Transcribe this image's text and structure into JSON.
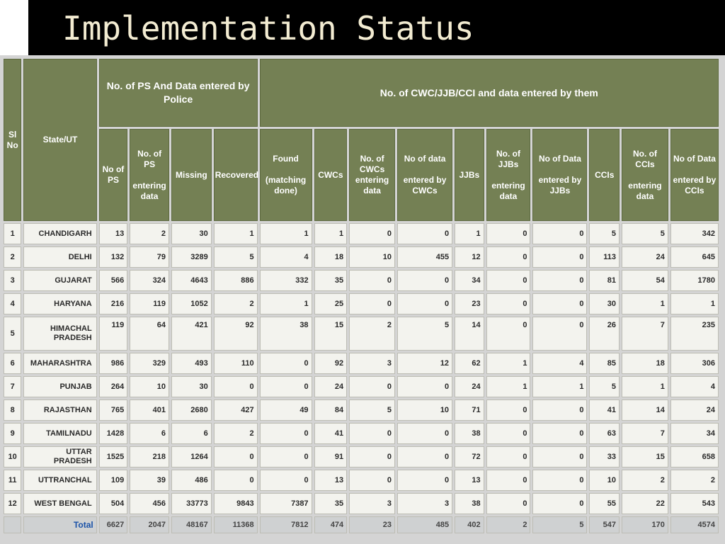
{
  "slide": {
    "title": "Implementation Status"
  },
  "table": {
    "headers": {
      "sl_no": "Sl No",
      "state": "State/UT",
      "group_police": "No. of PS And Data entered by Police",
      "group_cwc": "No. of CWC/JJB/CCI  and data entered  by them",
      "no_of_ps": "No of PS",
      "ps_entering": "No. of PS\n\nentering data",
      "missing": "Missing",
      "recovered": "Recovered",
      "found": "Found\n\n(matching done)",
      "cwcs": "CWCs",
      "cwcs_entering": "No. of CWCs entering data",
      "data_by_cwcs": "No of data\n\nentered by CWCs",
      "jjbs": "JJBs",
      "jjbs_entering": "No. of JJBs\n\nentering data",
      "data_by_jjbs": "No of Data\n\nentered by JJBs",
      "ccis": "CCIs",
      "ccis_entering": "No. of CCIs\n\nentering data",
      "data_by_ccis": "No of Data\n\nentered by CCIs"
    },
    "rows": [
      [
        "1",
        "CHANDIGARH",
        "13",
        "2",
        "30",
        "1",
        "1",
        "1",
        "0",
        "0",
        "1",
        "0",
        "0",
        "5",
        "5",
        "342"
      ],
      [
        "2",
        "DELHI",
        "132",
        "79",
        "3289",
        "5",
        "4",
        "18",
        "10",
        "455",
        "12",
        "0",
        "0",
        "113",
        "24",
        "645"
      ],
      [
        "3",
        "GUJARAT",
        "566",
        "324",
        "4643",
        "886",
        "332",
        "35",
        "0",
        "0",
        "34",
        "0",
        "0",
        "81",
        "54",
        "1780"
      ],
      [
        "4",
        "HARYANA",
        "216",
        "119",
        "1052",
        "2",
        "1",
        "25",
        "0",
        "0",
        "23",
        "0",
        "0",
        "30",
        "1",
        "1"
      ],
      [
        "5",
        "HIMACHAL PRADESH",
        "119",
        "64",
        "421",
        "92",
        "38",
        "15",
        "2",
        "5",
        "14",
        "0",
        "0",
        "26",
        "7",
        "235"
      ],
      [
        "6",
        "MAHARASHTRA",
        "986",
        "329",
        "493",
        "110",
        "0",
        "92",
        "3",
        "12",
        "62",
        "1",
        "4",
        "85",
        "18",
        "306"
      ],
      [
        "7",
        "PUNJAB",
        "264",
        "10",
        "30",
        "0",
        "0",
        "24",
        "0",
        "0",
        "24",
        "1",
        "1",
        "5",
        "1",
        "4"
      ],
      [
        "8",
        "RAJASTHAN",
        "765",
        "401",
        "2680",
        "427",
        "49",
        "84",
        "5",
        "10",
        "71",
        "0",
        "0",
        "41",
        "14",
        "24"
      ],
      [
        "9",
        "TAMILNADU",
        "1428",
        "6",
        "6",
        "2",
        "0",
        "41",
        "0",
        "0",
        "38",
        "0",
        "0",
        "63",
        "7",
        "34"
      ],
      [
        "10",
        "UTTAR PRADESH",
        "1525",
        "218",
        "1264",
        "0",
        "0",
        "91",
        "0",
        "0",
        "72",
        "0",
        "0",
        "33",
        "15",
        "658"
      ],
      [
        "11",
        "UTTRANCHAL",
        "109",
        "39",
        "486",
        "0",
        "0",
        "13",
        "0",
        "0",
        "13",
        "0",
        "0",
        "10",
        "2",
        "2"
      ],
      [
        "12",
        "WEST BENGAL",
        "504",
        "456",
        "33773",
        "9843",
        "7387",
        "35",
        "3",
        "3",
        "38",
        "0",
        "0",
        "55",
        "22",
        "543"
      ]
    ],
    "total": {
      "label": "Total",
      "values": [
        "6627",
        "2047",
        "48167",
        "11368",
        "7812",
        "474",
        "23",
        "485",
        "402",
        "2",
        "5",
        "547",
        "170",
        "4574"
      ]
    }
  },
  "colors": {
    "title_bar": "#000000",
    "title_text": "#f3ecd2",
    "header_bg": "#748054",
    "cell_bg": "#f3f3ee",
    "total_bg": "#cfd1d2",
    "total_label": "#1a52a8"
  }
}
